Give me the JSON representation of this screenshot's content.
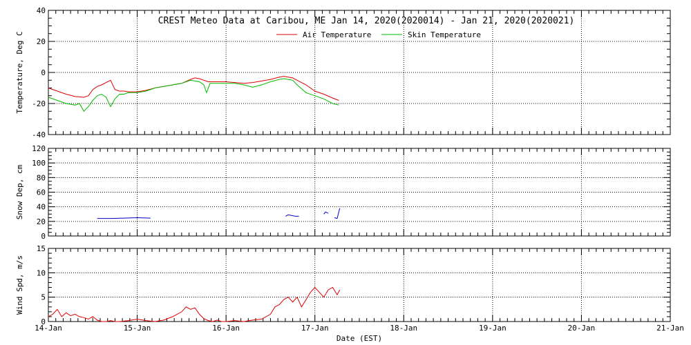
{
  "chart_data": [
    {
      "type": "line",
      "title": "CREST Meteo Data at Caribou, ME   Jan 14, 2020(2020014) - Jan 21, 2020(2020021)",
      "ylabel": "Temperature, Deg C",
      "ylim": [
        -40,
        40
      ],
      "yticks": [
        "-40",
        "-20",
        "0",
        "20",
        "40"
      ],
      "xlim": [
        0,
        7
      ],
      "grid": true,
      "legend_position": "top-center",
      "series": [
        {
          "name": "Air Temperature",
          "color": "#dd0000",
          "x": [
            0.0,
            0.1,
            0.2,
            0.3,
            0.4,
            0.45,
            0.5,
            0.55,
            0.6,
            0.65,
            0.7,
            0.75,
            0.8,
            0.85,
            0.9,
            1.0,
            1.1,
            1.2,
            1.3,
            1.4,
            1.5,
            1.6,
            1.65,
            1.7,
            1.75,
            1.8,
            1.9,
            2.0,
            2.1,
            2.2,
            2.3,
            2.4,
            2.5,
            2.6,
            2.65,
            2.7,
            2.75,
            2.8,
            2.9,
            3.0,
            3.1,
            3.2,
            3.27
          ],
          "values": [
            -10,
            -12,
            -14,
            -15.5,
            -16,
            -15,
            -11,
            -9,
            -8,
            -6.5,
            -5,
            -11,
            -12,
            -12,
            -12.5,
            -12.5,
            -11.5,
            -10,
            -9,
            -8,
            -7,
            -4.5,
            -3.5,
            -4,
            -5,
            -6,
            -6,
            -6,
            -6.5,
            -7,
            -6.5,
            -5.5,
            -4.5,
            -3,
            -2.5,
            -3,
            -3.5,
            -5,
            -8,
            -12,
            -14,
            -16.5,
            -18
          ]
        },
        {
          "name": "Skin Temperature",
          "color": "#00bb00",
          "x": [
            0.0,
            0.1,
            0.2,
            0.3,
            0.35,
            0.4,
            0.45,
            0.5,
            0.55,
            0.6,
            0.65,
            0.7,
            0.75,
            0.8,
            0.85,
            0.9,
            1.0,
            1.1,
            1.2,
            1.3,
            1.4,
            1.5,
            1.55,
            1.6,
            1.7,
            1.75,
            1.78,
            1.82,
            1.9,
            2.0,
            2.1,
            2.2,
            2.3,
            2.4,
            2.5,
            2.6,
            2.65,
            2.7,
            2.75,
            2.8,
            2.9,
            3.0,
            3.1,
            3.2,
            3.27
          ],
          "values": [
            -16,
            -18,
            -20,
            -21,
            -20,
            -25,
            -22,
            -18,
            -15,
            -14,
            -16,
            -22,
            -17,
            -14,
            -14,
            -13,
            -13,
            -12,
            -10,
            -9,
            -8,
            -7,
            -6,
            -5,
            -6,
            -8,
            -13,
            -7,
            -7,
            -7,
            -7,
            -8,
            -9.5,
            -8,
            -6,
            -4.5,
            -4,
            -4.5,
            -5,
            -8,
            -13,
            -15,
            -17,
            -20,
            -21
          ]
        }
      ]
    },
    {
      "type": "line",
      "ylabel": "Snow Dep, cm",
      "ylim": [
        0,
        120
      ],
      "yticks": [
        "0",
        "20",
        "40",
        "60",
        "80",
        "100",
        "120"
      ],
      "xlim": [
        0,
        7
      ],
      "grid": true,
      "series": [
        {
          "color": "#0000cc",
          "segments": [
            {
              "x": [
                0.55,
                0.7,
                0.85,
                1.0,
                1.15
              ],
              "values": [
                24,
                24,
                24.5,
                25,
                24.5
              ]
            },
            {
              "x": [
                2.67,
                2.7,
                2.74,
                2.78,
                2.82
              ],
              "values": [
                27,
                29,
                28,
                27,
                27
              ]
            },
            {
              "x": [
                3.1,
                3.12,
                3.15
              ],
              "values": [
                30,
                33,
                31
              ]
            },
            {
              "x": [
                3.22,
                3.25,
                3.28
              ],
              "values": [
                25,
                24,
                38
              ]
            }
          ]
        }
      ]
    },
    {
      "type": "line",
      "ylabel": "Wind Spd, m/s",
      "xlabel": "Date (EST)",
      "ylim": [
        0,
        15
      ],
      "yticks": [
        "0",
        "5",
        "10",
        "15"
      ],
      "xlim": [
        0,
        7
      ],
      "xticks": [
        "14-Jan",
        "15-Jan",
        "16-Jan",
        "17-Jan",
        "18-Jan",
        "19-Jan",
        "20-Jan",
        "21-Jan"
      ],
      "grid": true,
      "series": [
        {
          "color": "#dd0000",
          "x": [
            0.0,
            0.05,
            0.1,
            0.15,
            0.2,
            0.25,
            0.3,
            0.35,
            0.4,
            0.45,
            0.5,
            0.55,
            0.6,
            0.65,
            0.7,
            0.75,
            0.8,
            0.9,
            1.0,
            1.1,
            1.2,
            1.3,
            1.4,
            1.5,
            1.55,
            1.6,
            1.65,
            1.7,
            1.75,
            1.8,
            1.85,
            1.9,
            1.95,
            2.0,
            2.1,
            2.2,
            2.3,
            2.4,
            2.5,
            2.55,
            2.6,
            2.65,
            2.7,
            2.75,
            2.8,
            2.85,
            2.9,
            2.95,
            3.0,
            3.05,
            3.1,
            3.15,
            3.2,
            3.25,
            3.28
          ],
          "values": [
            1.0,
            1.5,
            2.5,
            1.0,
            1.8,
            1.2,
            1.5,
            1.0,
            0.8,
            0.5,
            1.0,
            0.3,
            0.0,
            0.0,
            0.2,
            0.0,
            0.0,
            0.2,
            0.5,
            0.2,
            0.0,
            0.3,
            1.0,
            2.0,
            3.0,
            2.5,
            2.8,
            1.5,
            0.6,
            0.2,
            0.0,
            0.3,
            0.0,
            0.0,
            0.2,
            0.0,
            0.3,
            0.5,
            1.5,
            3.0,
            3.5,
            4.5,
            5.0,
            4.0,
            5.0,
            3.0,
            4.5,
            6.0,
            7.0,
            6.0,
            5.0,
            6.5,
            7.0,
            5.5,
            6.5
          ]
        }
      ]
    }
  ]
}
